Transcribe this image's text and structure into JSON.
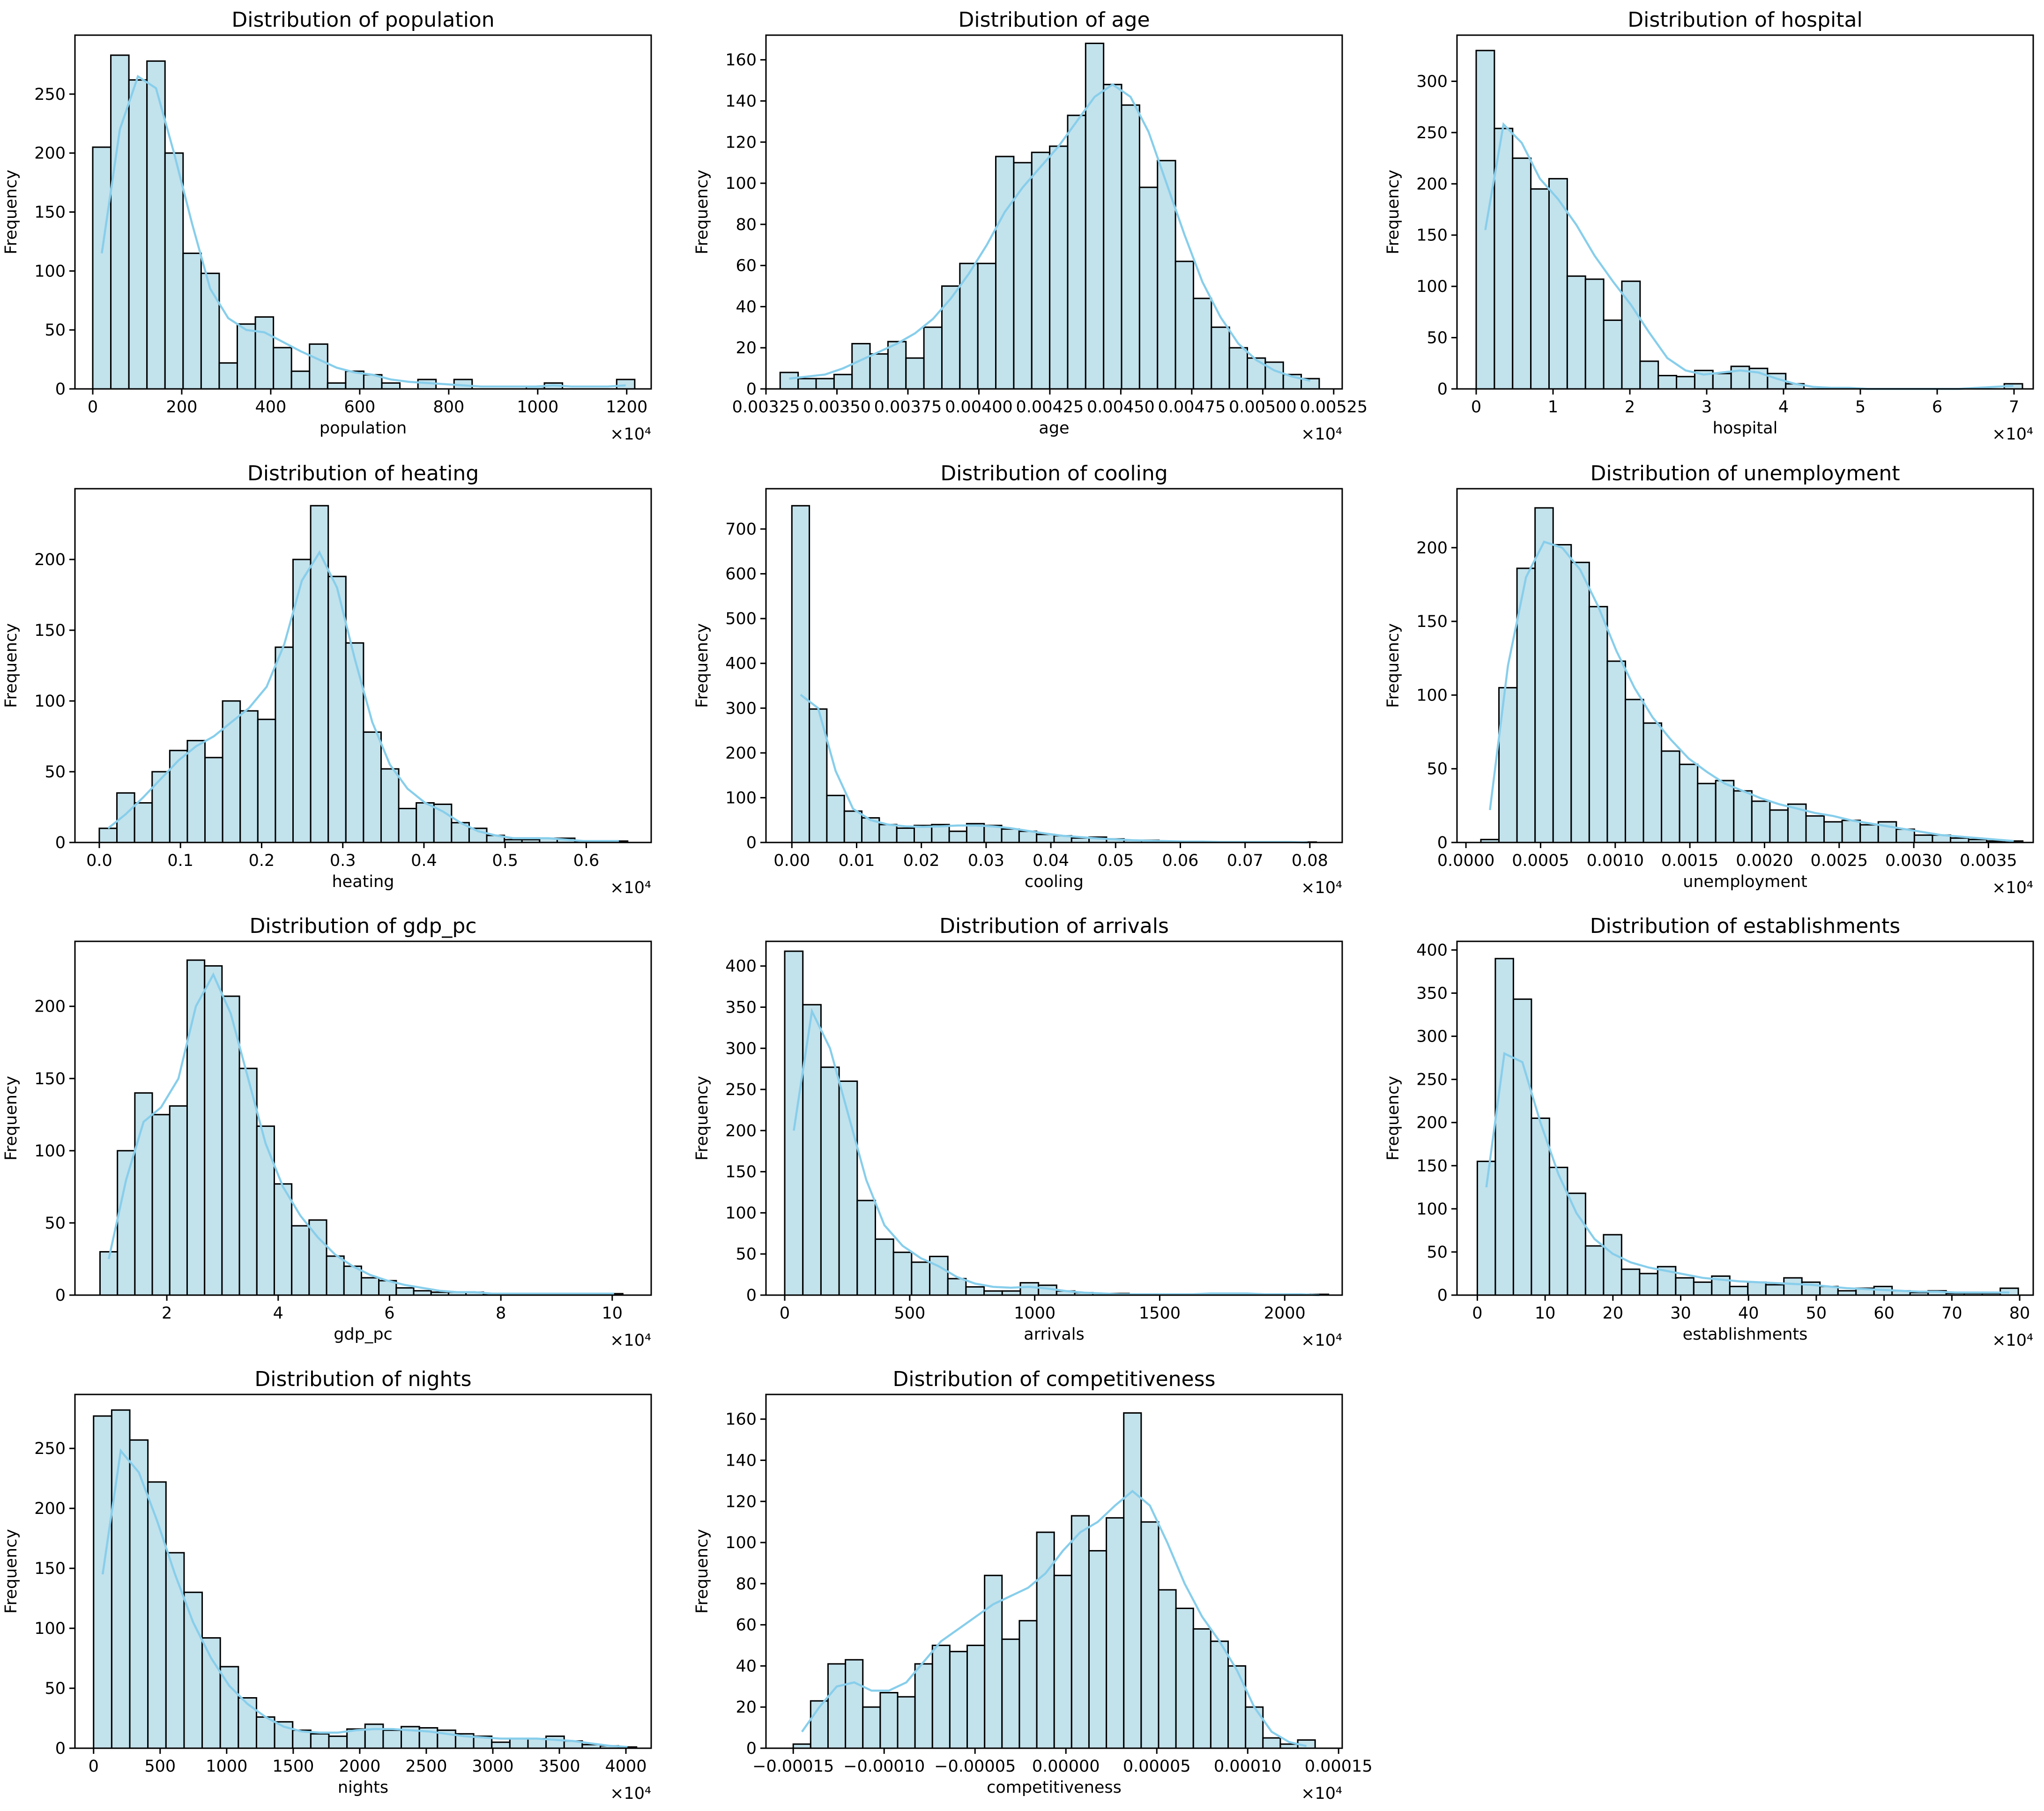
{
  "chart_data": [
    {
      "type": "bar",
      "title": "Distribution of population",
      "xlabel": "population",
      "ylabel": "Frequency",
      "multiplier": "×10⁴",
      "xlim": [
        -40,
        1255
      ],
      "ylim": [
        0,
        300
      ],
      "bin_start": 0,
      "bin_width": 40.6,
      "values": [
        205,
        283,
        262,
        278,
        200,
        115,
        98,
        22,
        55,
        61,
        35,
        15,
        38,
        5,
        15,
        12,
        5,
        0,
        8,
        0,
        8,
        0,
        0,
        0,
        2,
        5,
        0,
        0,
        0,
        8
      ],
      "kde": [
        115,
        220,
        265,
        255,
        200,
        140,
        85,
        60,
        50,
        48,
        40,
        32,
        25,
        18,
        14,
        12,
        8,
        6,
        5,
        4,
        3,
        2,
        2,
        2,
        2,
        3,
        2,
        2,
        2,
        3
      ],
      "xticks": [
        0,
        200,
        400,
        600,
        800,
        1000,
        1200
      ],
      "xtick_labels": [
        "0",
        "200",
        "400",
        "600",
        "800",
        "1000",
        "1200"
      ],
      "yticks": [
        0,
        50,
        100,
        150,
        200,
        250
      ],
      "ytick_labels": [
        "0",
        "50",
        "100",
        "150",
        "200",
        "250"
      ]
    },
    {
      "type": "bar",
      "title": "Distribution of age",
      "xlabel": "age",
      "ylabel": "Frequency",
      "multiplier": "×10⁴",
      "xlim": [
        0.00325,
        0.00528
      ],
      "ylim": [
        0,
        172
      ],
      "bin_start": 0.0033,
      "bin_width": 6.33e-05,
      "values": [
        8,
        5,
        5,
        7,
        22,
        17,
        23,
        15,
        30,
        50,
        61,
        61,
        113,
        110,
        115,
        118,
        133,
        168,
        148,
        138,
        98,
        111,
        62,
        44,
        30,
        20,
        15,
        13,
        7,
        5
      ],
      "kde": [
        5,
        6,
        7,
        10,
        14,
        18,
        22,
        27,
        34,
        44,
        56,
        70,
        86,
        98,
        108,
        118,
        130,
        142,
        148,
        142,
        125,
        100,
        75,
        52,
        35,
        22,
        14,
        9,
        6,
        4
      ],
      "xticks": [
        0.00325,
        0.0035,
        0.00375,
        0.004,
        0.00425,
        0.0045,
        0.00475,
        0.005,
        0.00525
      ],
      "xtick_labels": [
        "0.00325",
        "0.00350",
        "0.00375",
        "0.00400",
        "0.00425",
        "0.00450",
        "0.00475",
        "0.00500",
        "0.00525"
      ],
      "yticks": [
        0,
        20,
        40,
        60,
        80,
        100,
        120,
        140,
        160
      ],
      "ytick_labels": [
        "0",
        "20",
        "40",
        "60",
        "80",
        "100",
        "120",
        "140",
        "160"
      ]
    },
    {
      "type": "bar",
      "title": "Distribution of hospital",
      "xlabel": "hospital",
      "ylabel": "Frequency",
      "multiplier": "×10⁴",
      "xlim": [
        -0.25,
        7.25
      ],
      "ylim": [
        0,
        345
      ],
      "bin_start": 0,
      "bin_width": 0.237,
      "values": [
        330,
        254,
        225,
        195,
        205,
        110,
        107,
        67,
        105,
        27,
        13,
        12,
        18,
        15,
        22,
        20,
        15,
        5,
        0,
        0,
        0,
        0,
        0,
        0,
        0,
        0,
        0,
        0,
        0,
        5
      ],
      "kde": [
        155,
        258,
        240,
        205,
        185,
        160,
        130,
        105,
        82,
        55,
        30,
        18,
        14,
        16,
        18,
        16,
        10,
        5,
        2,
        1,
        1,
        0,
        0,
        0,
        0,
        0,
        0,
        1,
        2,
        3
      ],
      "xticks": [
        0,
        1,
        2,
        3,
        4,
        5,
        6,
        7
      ],
      "xtick_labels": [
        "0",
        "1",
        "2",
        "3",
        "4",
        "5",
        "6",
        "7"
      ],
      "yticks": [
        0,
        50,
        100,
        150,
        200,
        250,
        300
      ],
      "ytick_labels": [
        "0",
        "50",
        "100",
        "150",
        "200",
        "250",
        "300"
      ]
    },
    {
      "type": "bar",
      "title": "Distribution of heating",
      "xlabel": "heating",
      "ylabel": "Frequency",
      "multiplier": "×10⁴",
      "xlim": [
        -0.03,
        0.68
      ],
      "ylim": [
        0,
        250
      ],
      "bin_start": 0,
      "bin_width": 0.0217,
      "values": [
        10,
        35,
        28,
        50,
        65,
        72,
        60,
        100,
        93,
        87,
        138,
        200,
        238,
        188,
        141,
        78,
        52,
        24,
        28,
        27,
        14,
        10,
        5,
        2,
        2,
        3,
        3,
        1,
        1,
        1
      ],
      "kde": [
        10,
        20,
        32,
        45,
        58,
        68,
        75,
        85,
        95,
        110,
        140,
        185,
        205,
        180,
        130,
        85,
        55,
        38,
        28,
        22,
        14,
        8,
        5,
        3,
        3,
        3,
        2,
        1,
        1,
        1
      ],
      "xticks": [
        0,
        0.1,
        0.2,
        0.3,
        0.4,
        0.5,
        0.6
      ],
      "xtick_labels": [
        "0.0",
        "0.1",
        "0.2",
        "0.3",
        "0.4",
        "0.5",
        "0.6"
      ],
      "yticks": [
        0,
        50,
        100,
        150,
        200
      ],
      "ytick_labels": [
        "0",
        "50",
        "100",
        "150",
        "200"
      ]
    },
    {
      "type": "bar",
      "title": "Distribution of cooling",
      "xlabel": "cooling",
      "ylabel": "Frequency",
      "multiplier": "×10⁴",
      "xlim": [
        -0.004,
        0.085
      ],
      "ylim": [
        0,
        790
      ],
      "bin_start": 0,
      "bin_width": 0.0027,
      "values": [
        752,
        298,
        105,
        70,
        55,
        40,
        32,
        38,
        40,
        25,
        42,
        38,
        30,
        25,
        18,
        15,
        10,
        12,
        8,
        5,
        5,
        3,
        2,
        2,
        1,
        1,
        1,
        0,
        1,
        1
      ],
      "kde": [
        330,
        300,
        160,
        75,
        50,
        40,
        36,
        35,
        36,
        38,
        38,
        36,
        32,
        26,
        20,
        15,
        12,
        9,
        7,
        5,
        4,
        3,
        2,
        2,
        1,
        1,
        1,
        1,
        1,
        0
      ],
      "xticks": [
        0,
        0.01,
        0.02,
        0.03,
        0.04,
        0.05,
        0.06,
        0.07,
        0.08
      ],
      "xtick_labels": [
        "0.00",
        "0.01",
        "0.02",
        "0.03",
        "0.04",
        "0.05",
        "0.06",
        "0.07",
        "0.08"
      ],
      "yticks": [
        0,
        100,
        200,
        300,
        400,
        500,
        600,
        700
      ],
      "ytick_labels": [
        "0",
        "100",
        "200",
        "300",
        "400",
        "500",
        "600",
        "700"
      ]
    },
    {
      "type": "bar",
      "title": "Distribution of unemployment",
      "xlabel": "unemployment",
      "ylabel": "Frequency",
      "multiplier": "×10⁴",
      "xlim": [
        -6e-05,
        0.0038
      ],
      "ylim": [
        0,
        240
      ],
      "bin_start": 0.0001,
      "bin_width": 0.000121,
      "values": [
        2,
        105,
        186,
        227,
        202,
        190,
        160,
        123,
        97,
        81,
        62,
        53,
        40,
        42,
        35,
        28,
        22,
        26,
        18,
        14,
        15,
        12,
        14,
        9,
        5,
        5,
        3,
        2,
        1,
        1
      ],
      "kde": [
        22,
        120,
        180,
        204,
        200,
        185,
        160,
        130,
        105,
        85,
        70,
        57,
        48,
        40,
        35,
        30,
        26,
        23,
        20,
        18,
        15,
        13,
        11,
        9,
        7,
        5,
        4,
        3,
        2,
        1
      ],
      "xticks": [
        0,
        0.0005,
        0.001,
        0.0015,
        0.002,
        0.0025,
        0.003,
        0.0035
      ],
      "xtick_labels": [
        "0.0000",
        "0.0005",
        "0.0010",
        "0.0015",
        "0.0020",
        "0.0025",
        "0.0030",
        "0.0035"
      ],
      "yticks": [
        0,
        50,
        100,
        150,
        200
      ],
      "ytick_labels": [
        "0",
        "50",
        "100",
        "150",
        "200"
      ]
    },
    {
      "type": "bar",
      "title": "Distribution of gdp_pc",
      "xlabel": "gdp_pc",
      "ylabel": "Frequency",
      "multiplier": "×10⁴",
      "xlim": [
        0.35,
        10.7
      ],
      "ylim": [
        0,
        245
      ],
      "bin_start": 0.8,
      "bin_width": 0.313,
      "values": [
        30,
        100,
        140,
        125,
        131,
        232,
        228,
        207,
        157,
        117,
        77,
        48,
        52,
        27,
        20,
        12,
        10,
        5,
        3,
        2,
        2,
        2,
        1,
        1,
        1,
        1,
        1,
        1,
        1,
        1
      ],
      "kde": [
        25,
        80,
        120,
        130,
        150,
        200,
        222,
        195,
        150,
        105,
        75,
        55,
        40,
        28,
        20,
        14,
        10,
        7,
        5,
        3,
        2,
        2,
        1,
        1,
        1,
        1,
        1,
        1,
        1,
        1
      ],
      "xticks": [
        2,
        4,
        6,
        8,
        10
      ],
      "xtick_labels": [
        "2",
        "4",
        "6",
        "8",
        "10"
      ],
      "yticks": [
        0,
        50,
        100,
        150,
        200
      ],
      "ytick_labels": [
        "0",
        "50",
        "100",
        "150",
        "200"
      ]
    },
    {
      "type": "bar",
      "title": "Distribution of arrivals",
      "xlabel": "arrivals",
      "ylabel": "Frequency",
      "multiplier": "×10⁴",
      "xlim": [
        -75,
        2230
      ],
      "ylim": [
        0,
        430
      ],
      "bin_start": 0,
      "bin_width": 72.5,
      "values": [
        418,
        353,
        277,
        260,
        115,
        68,
        52,
        40,
        47,
        20,
        10,
        5,
        5,
        15,
        12,
        5,
        3,
        2,
        2,
        1,
        1,
        1,
        1,
        1,
        1,
        1,
        1,
        1,
        1,
        1
      ],
      "kde": [
        200,
        345,
        300,
        220,
        140,
        85,
        60,
        45,
        35,
        22,
        14,
        10,
        9,
        10,
        8,
        5,
        3,
        2,
        1,
        1,
        1,
        1,
        1,
        2,
        2,
        2,
        1,
        1,
        1,
        0
      ],
      "xticks": [
        0,
        500,
        1000,
        1500,
        2000
      ],
      "xtick_labels": [
        "0",
        "500",
        "1000",
        "1500",
        "2000"
      ],
      "yticks": [
        0,
        50,
        100,
        150,
        200,
        250,
        300,
        350,
        400
      ],
      "ytick_labels": [
        "0",
        "50",
        "100",
        "150",
        "200",
        "250",
        "300",
        "350",
        "400"
      ]
    },
    {
      "type": "bar",
      "title": "Distribution of establishments",
      "xlabel": "establishments",
      "ylabel": "Frequency",
      "multiplier": "×10⁴",
      "xlim": [
        -3,
        82
      ],
      "ylim": [
        0,
        410
      ],
      "bin_start": 0,
      "bin_width": 2.66,
      "values": [
        155,
        390,
        343,
        205,
        148,
        118,
        57,
        70,
        30,
        25,
        33,
        20,
        15,
        22,
        10,
        15,
        12,
        20,
        15,
        10,
        5,
        8,
        10,
        5,
        3,
        5,
        2,
        2,
        2,
        8
      ],
      "kde": [
        125,
        280,
        270,
        200,
        140,
        95,
        65,
        48,
        38,
        32,
        28,
        24,
        20,
        18,
        16,
        15,
        14,
        13,
        12,
        10,
        8,
        7,
        6,
        5,
        4,
        4,
        3,
        3,
        3,
        3
      ],
      "xticks": [
        0,
        10,
        20,
        30,
        40,
        50,
        60,
        70,
        80
      ],
      "xtick_labels": [
        "0",
        "10",
        "20",
        "30",
        "40",
        "50",
        "60",
        "70",
        "80"
      ],
      "yticks": [
        0,
        50,
        100,
        150,
        200,
        250,
        300,
        350,
        400
      ],
      "ytick_labels": [
        "0",
        "50",
        "100",
        "150",
        "200",
        "250",
        "300",
        "350",
        "400"
      ]
    },
    {
      "type": "bar",
      "title": "Distribution of nights",
      "xlabel": "nights",
      "ylabel": "Frequency",
      "multiplier": "×10⁴",
      "xlim": [
        -140,
        4190
      ],
      "ylim": [
        0,
        295
      ],
      "bin_start": 0,
      "bin_width": 136,
      "values": [
        277,
        282,
        257,
        222,
        163,
        130,
        92,
        68,
        42,
        26,
        22,
        15,
        12,
        10,
        16,
        20,
        15,
        18,
        17,
        15,
        12,
        10,
        5,
        8,
        8,
        10,
        6,
        3,
        2,
        1
      ],
      "kde": [
        145,
        248,
        230,
        190,
        145,
        105,
        75,
        52,
        37,
        26,
        18,
        14,
        13,
        13,
        15,
        16,
        16,
        15,
        14,
        12,
        10,
        9,
        8,
        8,
        8,
        7,
        6,
        4,
        2,
        1
      ],
      "xticks": [
        0,
        500,
        1000,
        1500,
        2000,
        2500,
        3000,
        3500,
        4000
      ],
      "xtick_labels": [
        "0",
        "500",
        "1000",
        "1500",
        "2000",
        "2500",
        "3000",
        "3500",
        "4000"
      ],
      "yticks": [
        0,
        50,
        100,
        150,
        200,
        250
      ],
      "ytick_labels": [
        "0",
        "50",
        "100",
        "150",
        "200",
        "250"
      ]
    },
    {
      "type": "bar",
      "title": "Distribution of competitiveness",
      "xlabel": "competitiveness",
      "ylabel": "Frequency",
      "multiplier": "×10⁴",
      "xlim": [
        -0.000165,
        0.000152
      ],
      "ylim": [
        0,
        172
      ],
      "bin_start": -0.00015,
      "bin_width": 9.57e-06,
      "values": [
        2,
        23,
        41,
        43,
        20,
        27,
        25,
        41,
        50,
        47,
        50,
        84,
        53,
        62,
        105,
        84,
        113,
        96,
        112,
        163,
        110,
        77,
        68,
        58,
        52,
        40,
        20,
        5,
        2,
        4
      ],
      "kde": [
        8,
        20,
        30,
        32,
        28,
        28,
        32,
        42,
        52,
        58,
        64,
        70,
        74,
        78,
        85,
        96,
        105,
        110,
        118,
        125,
        118,
        100,
        80,
        64,
        52,
        38,
        20,
        8,
        3,
        1
      ],
      "xticks": [
        -0.00015,
        -0.0001,
        -5e-05,
        0,
        5e-05,
        0.0001,
        0.00015
      ],
      "xtick_labels": [
        "−0.00015",
        "−0.00010",
        "−0.00005",
        "0.00000",
        "0.00005",
        "0.00010",
        "0.00015"
      ],
      "yticks": [
        0,
        20,
        40,
        60,
        80,
        100,
        120,
        140,
        160
      ],
      "ytick_labels": [
        "0",
        "20",
        "40",
        "60",
        "80",
        "100",
        "120",
        "140",
        "160"
      ]
    }
  ]
}
